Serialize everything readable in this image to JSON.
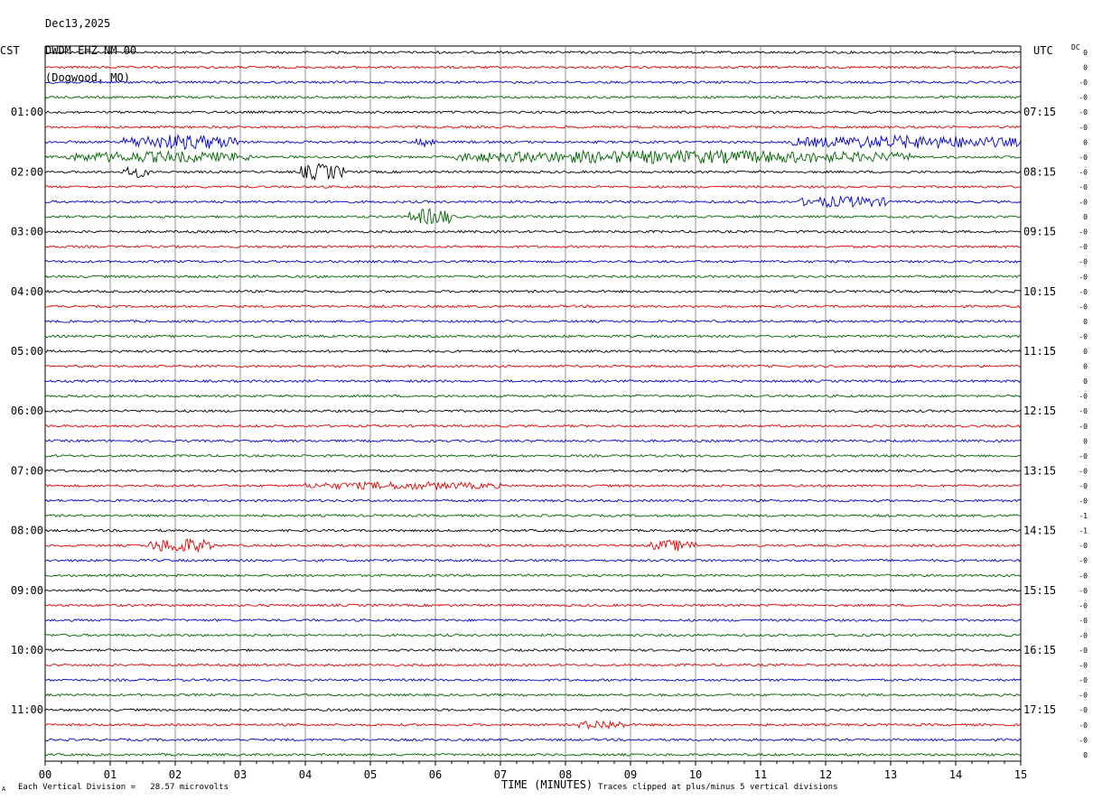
{
  "header": {
    "date": "Dec13,2025",
    "station": "DWDM EHZ NM 00",
    "location": "(Dogwood, MO)"
  },
  "left_tz": "CST",
  "right_tz": "UTC",
  "dc_label": "DC",
  "footer": {
    "scale_note": "Each Vertical Division =   28.57 microvolts",
    "xlabel": "TIME (MINUTES)",
    "clip_note": "Traces clipped at plus/minus 5 vertical divisions",
    "corner_mark": "A"
  },
  "colors": {
    "trace_cycle": [
      "#000000",
      "#e00000",
      "#0000c8",
      "#006400"
    ],
    "grid": "#000000"
  },
  "chart_data": {
    "type": "line",
    "title": "Dec13,2025 DWDM EHZ NM 00 (Dogwood, MO)",
    "xlabel": "TIME (MINUTES)",
    "xlim": [
      0,
      15
    ],
    "x_ticks": [
      "00",
      "01",
      "02",
      "03",
      "04",
      "05",
      "06",
      "07",
      "08",
      "09",
      "10",
      "11",
      "12",
      "13",
      "14",
      "15"
    ],
    "row_count": 48,
    "left_hour_labels": [
      "01:00",
      "02:00",
      "03:00",
      "04:00",
      "05:00",
      "06:00",
      "07:00",
      "08:00",
      "09:00",
      "10:00",
      "11:00"
    ],
    "right_hour_labels": [
      "07:15",
      "08:15",
      "09:15",
      "10:15",
      "11:15",
      "12:15",
      "13:15",
      "14:15",
      "15:15",
      "16:15",
      "17:15"
    ],
    "dc_offsets": [
      "0",
      "0",
      "-0",
      "-0",
      "-0",
      "-0",
      "0",
      "-0",
      "-0",
      "-0",
      "-0",
      "0",
      "-0",
      "-0",
      "-0",
      "-0",
      "-0",
      "-0",
      "0",
      "-0",
      "0",
      "0",
      "0",
      "-0",
      "-0",
      "-0",
      "0",
      "-0",
      "-0",
      "-0",
      "-0",
      "-1",
      "-1",
      "-0",
      "-0",
      "-0",
      "-0",
      "-0",
      "-0",
      "-0",
      "-0",
      "-0",
      "-0",
      "-0",
      "-0",
      "-0",
      "-0",
      "0"
    ],
    "grid": true,
    "events": [
      {
        "row": 6,
        "from_min": 1.2,
        "to_min": 3.0,
        "amp": 7
      },
      {
        "row": 6,
        "from_min": 5.7,
        "to_min": 6.0,
        "amp": 5
      },
      {
        "row": 6,
        "from_min": 11.5,
        "to_min": 15.0,
        "amp": 6
      },
      {
        "row": 7,
        "from_min": 0.3,
        "to_min": 3.2,
        "amp": 5
      },
      {
        "row": 7,
        "from_min": 6.3,
        "to_min": 13.3,
        "amp": 6
      },
      {
        "row": 8,
        "from_min": 1.2,
        "to_min": 1.6,
        "amp": 5
      },
      {
        "row": 8,
        "from_min": 3.9,
        "to_min": 4.6,
        "amp": 8
      },
      {
        "row": 10,
        "from_min": 11.6,
        "to_min": 13.0,
        "amp": 5
      },
      {
        "row": 11,
        "from_min": 5.6,
        "to_min": 6.3,
        "amp": 8
      },
      {
        "row": 29,
        "from_min": 4.0,
        "to_min": 7.0,
        "amp": 3
      },
      {
        "row": 33,
        "from_min": 1.6,
        "to_min": 2.6,
        "amp": 7
      },
      {
        "row": 33,
        "from_min": 9.3,
        "to_min": 10.0,
        "amp": 5
      },
      {
        "row": 45,
        "from_min": 8.2,
        "to_min": 8.9,
        "amp": 4
      }
    ]
  }
}
